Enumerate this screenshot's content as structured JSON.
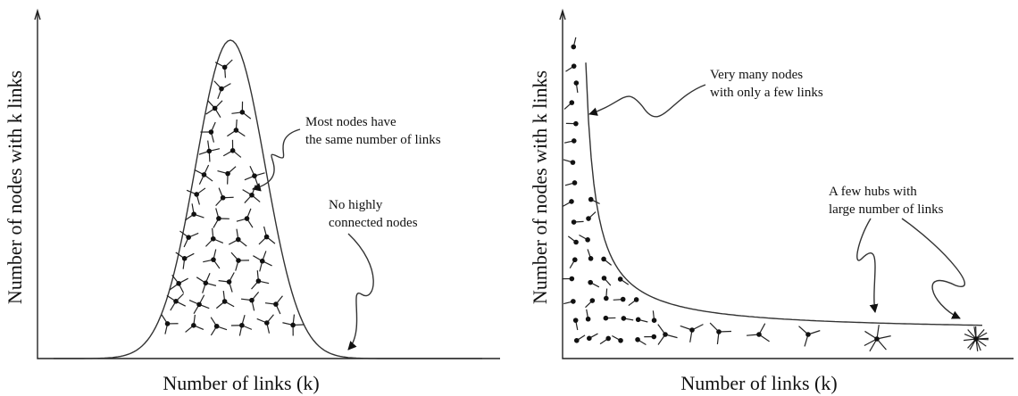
{
  "panels": [
    {
      "y_label": "Number of nodes with k links",
      "x_label": "Number of links (k)",
      "annotations": [
        {
          "lines": [
            "Most nodes have",
            "the same number of links"
          ]
        },
        {
          "lines": [
            "No highly",
            "connected nodes"
          ]
        }
      ]
    },
    {
      "y_label": "Number of nodes with k links",
      "x_label": "Number of links (k)",
      "annotations": [
        {
          "lines": [
            "Very many nodes",
            "with only a few links"
          ]
        },
        {
          "lines": [
            "A few hubs with",
            "large number of links"
          ]
        }
      ]
    }
  ]
}
